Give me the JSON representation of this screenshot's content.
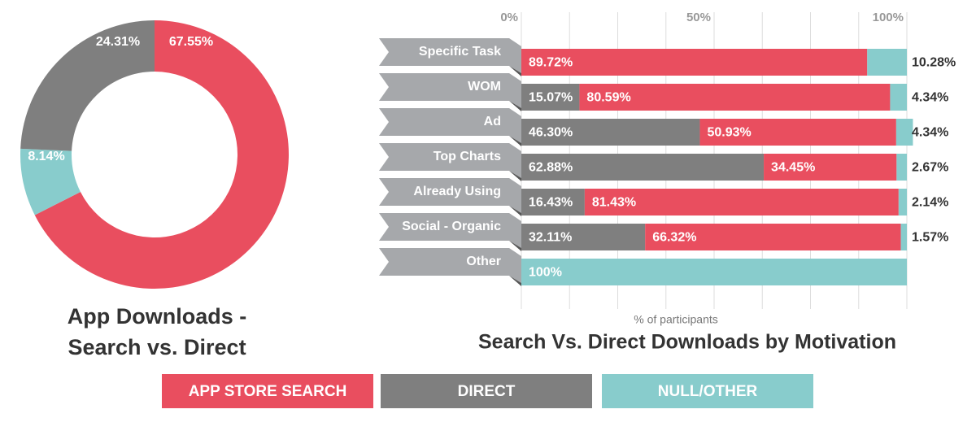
{
  "chart_data": [
    {
      "type": "pie",
      "title": "App Downloads - Search vs. Direct",
      "categories": [
        "APP STORE SEARCH",
        "DIRECT",
        "NULL/OTHER"
      ],
      "colors": [
        "#e94e5f",
        "#7f7f7f",
        "#88cccc"
      ],
      "values": [
        67.55,
        24.31,
        8.14
      ],
      "value_labels": [
        "67.55%",
        "24.31%",
        "8.14%"
      ]
    },
    {
      "type": "stacked-barh",
      "title": "Search Vs. Direct Downloads by Motivation",
      "xlabel": "% of participants",
      "categories": [
        "Specific Task",
        "WOM",
        "Ad",
        "Top Charts",
        "Already Using",
        "Social - Organic",
        "Other"
      ],
      "series": [
        {
          "color": "#7f7f7f",
          "values": [
            null,
            15.07,
            46.3,
            62.88,
            16.43,
            32.11,
            null
          ],
          "value_labels": [
            null,
            "15.07%",
            "46.30%",
            "62.88%",
            "16.43%",
            "32.11%",
            null
          ]
        },
        {
          "color": "#e94e5f",
          "values": [
            89.72,
            80.59,
            50.93,
            34.45,
            81.43,
            66.32,
            null
          ],
          "value_labels": [
            "89.72%",
            "80.59%",
            "50.93%",
            "34.45%",
            "81.43%",
            "66.32%",
            null
          ]
        },
        {
          "color": "#88cccc",
          "values": [
            10.28,
            4.34,
            4.34,
            2.67,
            2.14,
            1.57,
            100
          ],
          "value_labels": [
            "10.28%",
            "4.34%",
            "4.34%",
            "2.67%",
            "2.14%",
            "1.57%",
            "100%"
          ]
        }
      ],
      "xlim": [
        0,
        100
      ],
      "xticks": [
        {
          "value": 0,
          "label": "0%"
        },
        {
          "value": 50,
          "label": "50%"
        },
        {
          "value": 100,
          "label": "100%"
        }
      ],
      "xminor": [
        12.5,
        25,
        37.5,
        62.5,
        75,
        87.5
      ],
      "grid": true
    }
  ]
}
